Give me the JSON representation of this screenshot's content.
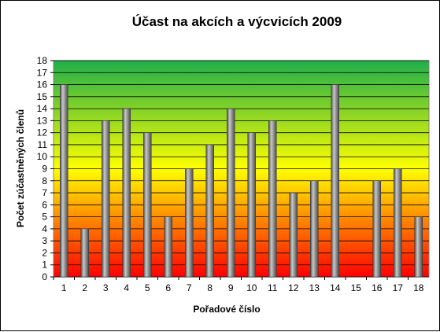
{
  "chart_data": {
    "type": "bar",
    "title": "Účast na akcích a výcvicích 2009",
    "xlabel": "Pořadové číslo",
    "ylabel": "Počet zúčastněných členů",
    "categories": [
      "1",
      "2",
      "3",
      "4",
      "5",
      "6",
      "7",
      "8",
      "9",
      "10",
      "11",
      "12",
      "13",
      "14",
      "15",
      "16",
      "17",
      "18"
    ],
    "values": [
      16,
      4,
      13,
      14,
      12,
      5,
      9,
      11,
      14,
      12,
      13,
      7,
      8,
      16,
      0,
      8,
      9,
      5
    ],
    "ylim": [
      0,
      18
    ],
    "ytick_step": 1,
    "grid": true,
    "legend": "none",
    "colors": {
      "background_top": "#1fae4a",
      "background_mid": "#ffff00",
      "background_bottom": "#ff0000",
      "bar_light": "#c8c8c8",
      "bar_dark": "#4a4a4a",
      "gridline": "#000000"
    }
  }
}
